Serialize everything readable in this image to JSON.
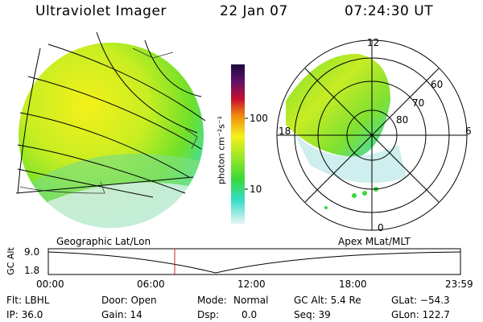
{
  "header": {
    "title": "Ultraviolet Imager",
    "date": "22 Jan 07",
    "time": "07:24:30 UT"
  },
  "colorbar": {
    "unit_label": "photon cm⁻²s⁻¹",
    "ticks": [
      "100",
      "10"
    ]
  },
  "polar_plot": {
    "mlt_labels": [
      "12",
      "18",
      "6",
      "0"
    ],
    "mlat_labels": [
      "60",
      "70",
      "80"
    ]
  },
  "timeline": {
    "left_label": "Geographic Lat/Lon",
    "right_label": "Apex  MLat/MLT",
    "axis_label": "GC Alt",
    "y_ticks": [
      "9.0",
      "1.8"
    ],
    "x_ticks": [
      "00:00",
      "06:00",
      "12:00",
      "18:00",
      "23:59"
    ],
    "cursor_color": "#cc2222"
  },
  "info": {
    "flt": "Flt: LBHL",
    "ip": "IP: 36.0",
    "door": "Door: Open",
    "gain": "Gain: 14",
    "mode_label": "Mode:",
    "mode_value": "Normal",
    "dsp_label": "Dsp:",
    "dsp_value": "0.0",
    "gc_alt": "GC Alt: 5.4 Re",
    "seq": "Seq: 39",
    "glat": "GLat: −54.3",
    "glon": "GLon: 122.7"
  }
}
